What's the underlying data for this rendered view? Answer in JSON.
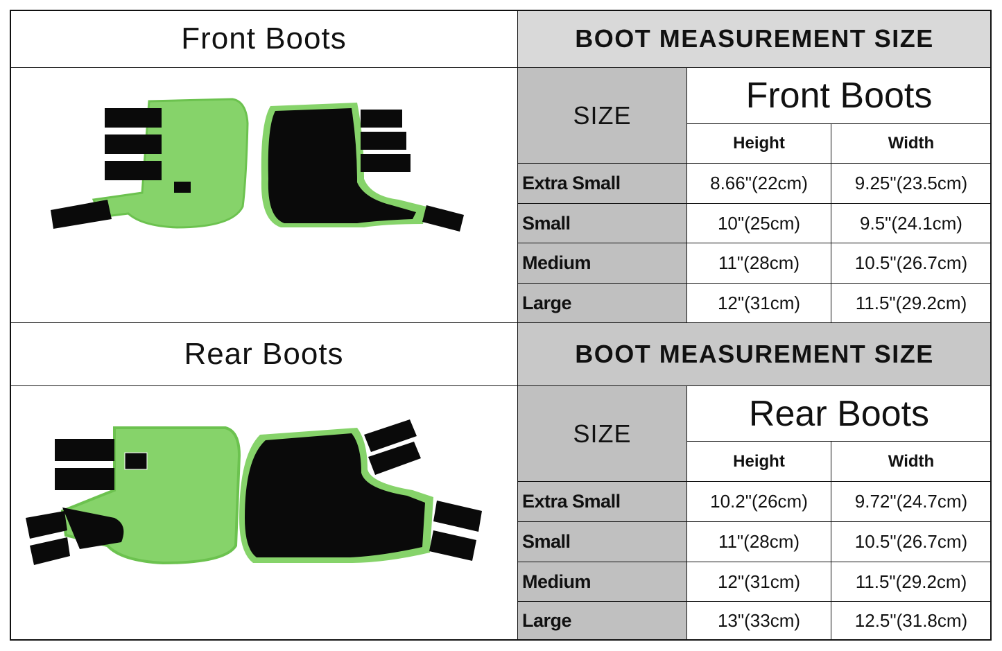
{
  "front": {
    "title": "Front Boots",
    "header": "BOOT MEASUREMENT SIZE",
    "size_label": "SIZE",
    "table_title": "Front Boots",
    "columns": [
      "Height",
      "Width"
    ],
    "rows": [
      {
        "size": "Extra Small",
        "height": "8.66\"(22cm)",
        "width": "9.25\"(23.5cm)"
      },
      {
        "size": "Small",
        "height": "10\"(25cm)",
        "width": "9.5\"(24.1cm)"
      },
      {
        "size": "Medium",
        "height": "11\"(28cm)",
        "width": "10.5\"(26.7cm)"
      },
      {
        "size": "Large",
        "height": "12\"(31cm)",
        "width": "11.5\"(29.2cm)"
      }
    ]
  },
  "rear": {
    "title": "Rear Boots",
    "header": "BOOT MEASUREMENT SIZE",
    "size_label": "SIZE",
    "table_title": "Rear Boots",
    "columns": [
      "Height",
      "Width"
    ],
    "rows": [
      {
        "size": "Extra Small",
        "height": "10.2\"(26cm)",
        "width": "9.72\"(24.7cm)"
      },
      {
        "size": "Small",
        "height": "11\"(28cm)",
        "width": "10.5\"(26.7cm)"
      },
      {
        "size": "Medium",
        "height": "12\"(31cm)",
        "width": "11.5\"(29.2cm)"
      },
      {
        "size": "Large",
        "height": "13\"(33cm)",
        "width": "12.5\"(31.8cm)"
      }
    ]
  },
  "colors": {
    "boot_green": "#86d36a",
    "boot_black": "#0a0a0a",
    "header_gray": "#d9d9d9",
    "size_gray": "#c0c0c0"
  }
}
